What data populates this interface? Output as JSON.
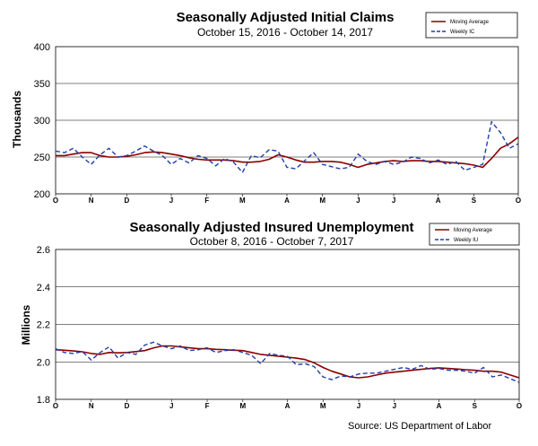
{
  "source": "Source: US Department of Labor",
  "chart_data": [
    {
      "type": "line",
      "title": "Seasonally Adjusted Initial Claims",
      "subtitle": "October 15, 2016  -  October 14, 2017",
      "ylabel": "Thousands",
      "xlabel": "",
      "ylim": [
        200,
        400
      ],
      "yticks": [
        200,
        250,
        300,
        350,
        400
      ],
      "ytick_labels": [
        "200",
        "250",
        "300",
        "350",
        "400"
      ],
      "x_tick_labels": [
        "O",
        "N",
        "D",
        "J",
        "F",
        "M",
        "A",
        "M",
        "J",
        "J",
        "A",
        "S",
        "O"
      ],
      "x_tick_positions": [
        0,
        4,
        8,
        13,
        17,
        21,
        26,
        30,
        34,
        38,
        43,
        47,
        52
      ],
      "x_count": 53,
      "legend_position": "top-right",
      "series": [
        {
          "name": "Moving Average",
          "style": "solid",
          "color": "#8b0000",
          "values": [
            252,
            252,
            254,
            256,
            256,
            252,
            250,
            250,
            251,
            253,
            256,
            257,
            256,
            254,
            252,
            249,
            247,
            246,
            246,
            246,
            245,
            243,
            243,
            244,
            247,
            253,
            250,
            246,
            243,
            243,
            244,
            244,
            243,
            240,
            236,
            240,
            242,
            244,
            245,
            244,
            245,
            245,
            244,
            244,
            243,
            242,
            241,
            239,
            236,
            248,
            262,
            268,
            277
          ]
        },
        {
          "name": "Weekly IC",
          "style": "dashed",
          "color": "#1f3fa6",
          "values": [
            258,
            256,
            262,
            250,
            240,
            253,
            262,
            250,
            252,
            258,
            265,
            258,
            252,
            240,
            248,
            242,
            252,
            248,
            238,
            248,
            243,
            229,
            252,
            249,
            260,
            258,
            236,
            234,
            245,
            256,
            240,
            237,
            234,
            236,
            254,
            244,
            240,
            244,
            240,
            243,
            250,
            248,
            242,
            246,
            240,
            244,
            232,
            236,
            240,
            298,
            283,
            262,
            268
          ]
        }
      ]
    },
    {
      "type": "line",
      "title": "Seasonally Adjusted Insured Unemployment",
      "subtitle": "October 8, 2016  -  October 7, 2017",
      "ylabel": "Millions",
      "xlabel": "",
      "ylim": [
        1.8,
        2.6
      ],
      "yticks": [
        1.8,
        2.0,
        2.2,
        2.4,
        2.6
      ],
      "ytick_labels": [
        "1.8",
        "2.0",
        "2.2",
        "2.4",
        "2.6"
      ],
      "x_tick_labels": [
        "O",
        "N",
        "D",
        "J",
        "F",
        "M",
        "A",
        "M",
        "J",
        "J",
        "A",
        "S",
        "O"
      ],
      "x_tick_positions": [
        0,
        4,
        8,
        13,
        17,
        21,
        26,
        30,
        34,
        38,
        43,
        47,
        52
      ],
      "x_count": 53,
      "legend_position": "top-right",
      "series": [
        {
          "name": "Moving Average",
          "style": "solid",
          "color": "#8b0000",
          "values": [
            2.065,
            2.062,
            2.058,
            2.054,
            2.045,
            2.04,
            2.05,
            2.048,
            2.05,
            2.055,
            2.06,
            2.075,
            2.085,
            2.085,
            2.08,
            2.075,
            2.07,
            2.07,
            2.067,
            2.065,
            2.062,
            2.06,
            2.05,
            2.04,
            2.035,
            2.03,
            2.025,
            2.02,
            2.012,
            1.995,
            1.97,
            1.95,
            1.935,
            1.92,
            1.915,
            1.92,
            1.93,
            1.94,
            1.945,
            1.95,
            1.955,
            1.96,
            1.965,
            1.968,
            1.965,
            1.962,
            1.958,
            1.955,
            1.95,
            1.95,
            1.945,
            1.93,
            1.915
          ]
        },
        {
          "name": "Weekly IU",
          "style": "dashed",
          "color": "#1f3fa6",
          "values": [
            2.07,
            2.05,
            2.045,
            2.055,
            2.01,
            2.05,
            2.08,
            2.02,
            2.05,
            2.04,
            2.09,
            2.105,
            2.085,
            2.07,
            2.085,
            2.06,
            2.065,
            2.075,
            2.05,
            2.06,
            2.065,
            2.05,
            2.035,
            1.99,
            2.045,
            2.035,
            2.03,
            1.985,
            1.99,
            1.975,
            1.92,
            1.905,
            1.925,
            1.92,
            1.935,
            1.94,
            1.94,
            1.95,
            1.96,
            1.97,
            1.96,
            1.98,
            1.96,
            1.965,
            1.955,
            1.955,
            1.95,
            1.94,
            1.97,
            1.92,
            1.93,
            1.91,
            1.89
          ]
        }
      ]
    }
  ]
}
